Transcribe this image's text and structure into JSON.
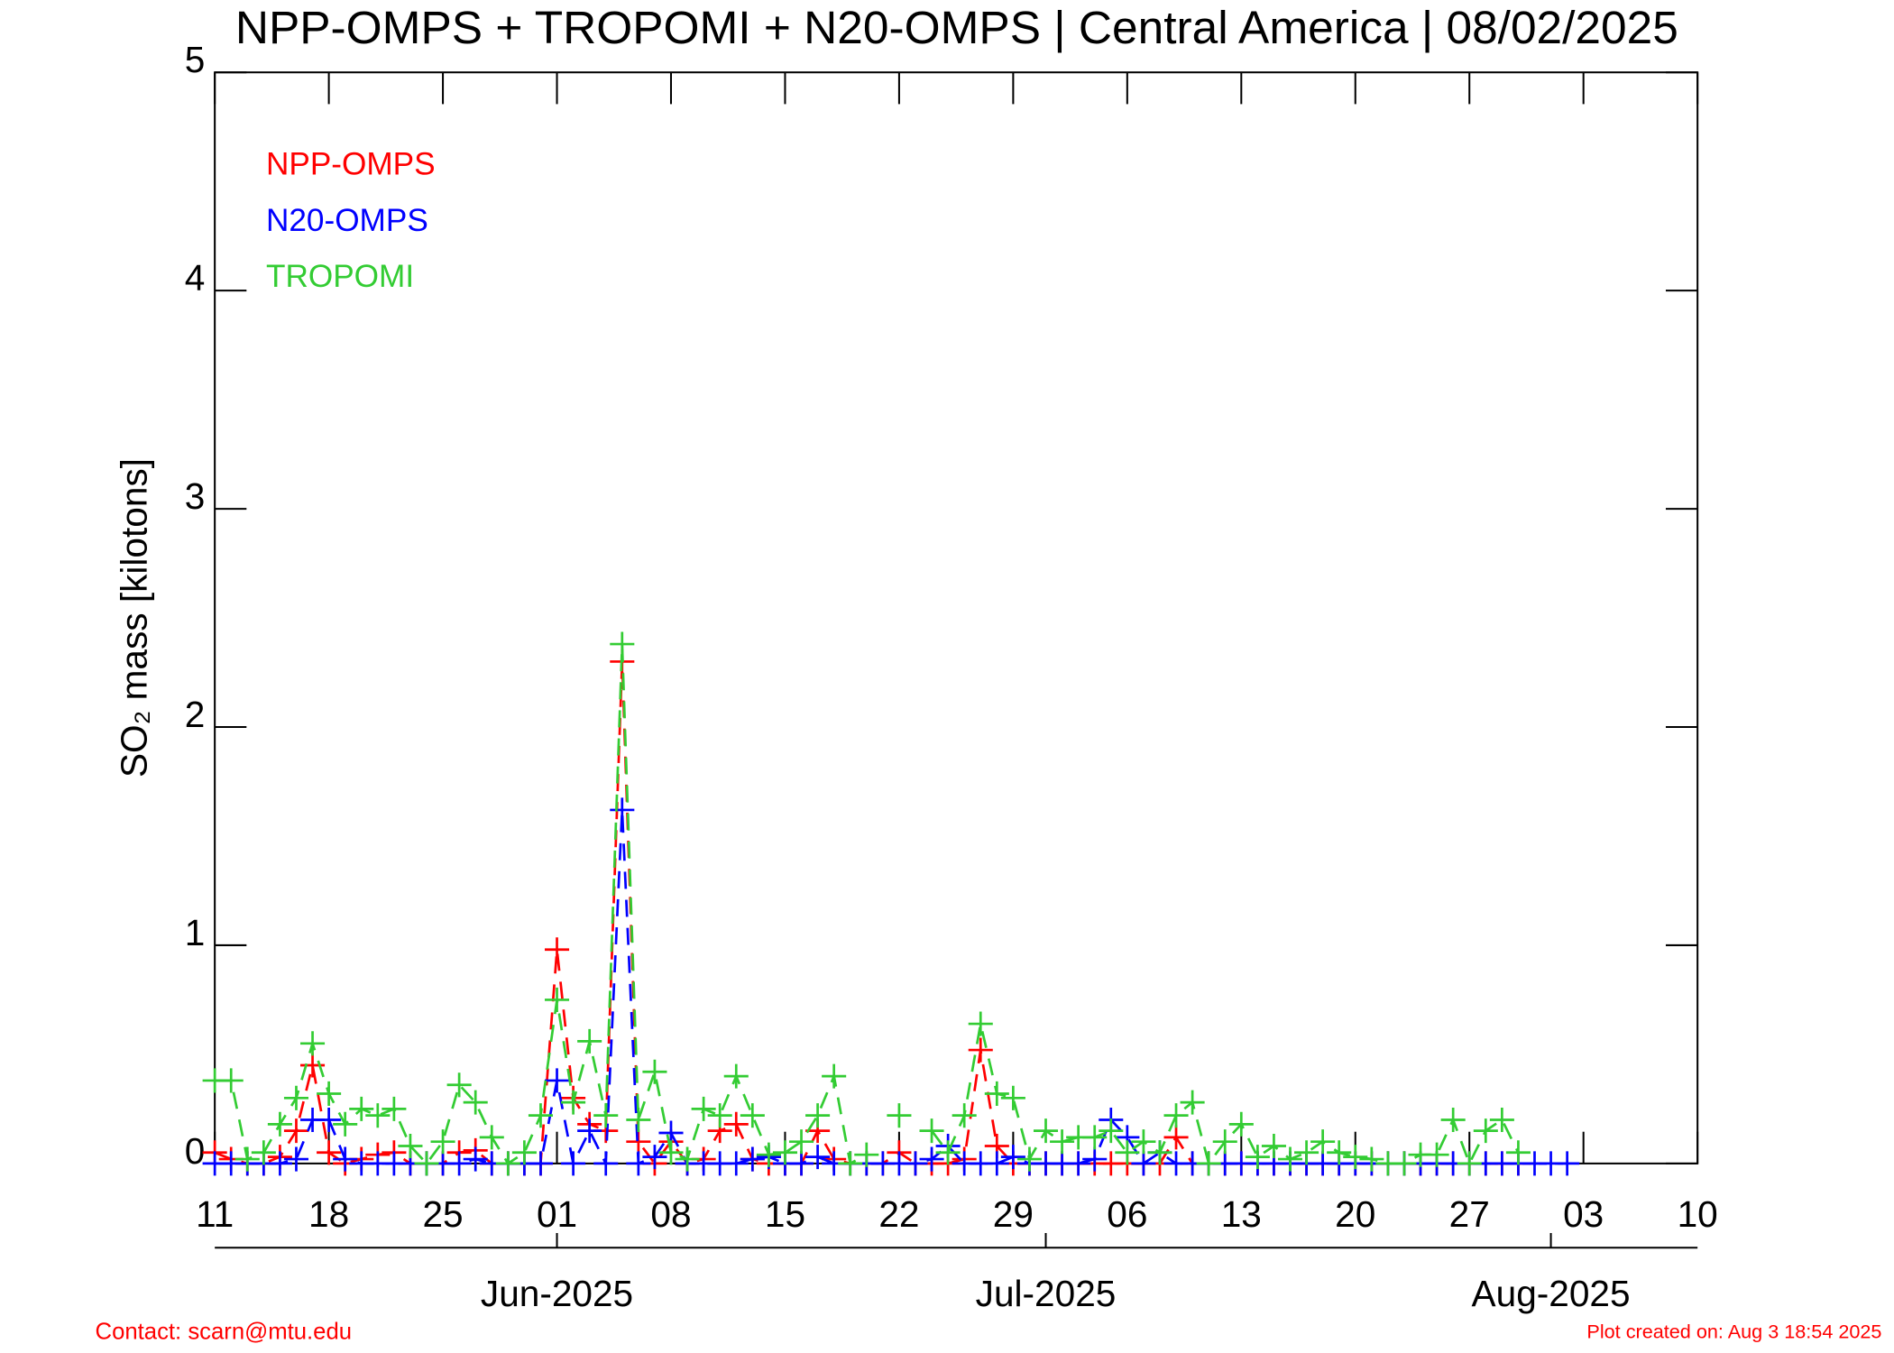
{
  "chart_data": {
    "type": "line",
    "title": "NPP-OMPS + TROPOMI + N20-OMPS | Central America | 08/02/2025",
    "y_label": "SO₂ mass [kilotons]",
    "contact": "Contact: scarn@mtu.edu",
    "created": "Plot created on: Aug  3 18:54 2025",
    "legend": "upper left",
    "x": [
      "2025-05-11",
      "2025-05-12",
      "2025-05-13",
      "2025-05-14",
      "2025-05-15",
      "2025-05-16",
      "2025-05-17",
      "2025-05-18",
      "2025-05-19",
      "2025-05-20",
      "2025-05-21",
      "2025-05-22",
      "2025-05-23",
      "2025-05-24",
      "2025-05-25",
      "2025-05-26",
      "2025-05-27",
      "2025-05-28",
      "2025-05-29",
      "2025-05-30",
      "2025-05-31",
      "2025-06-01",
      "2025-06-02",
      "2025-06-03",
      "2025-06-04",
      "2025-06-05",
      "2025-06-06",
      "2025-06-07",
      "2025-06-08",
      "2025-06-09",
      "2025-06-10",
      "2025-06-11",
      "2025-06-12",
      "2025-06-13",
      "2025-06-14",
      "2025-06-15",
      "2025-06-16",
      "2025-06-17",
      "2025-06-18",
      "2025-06-19",
      "2025-06-20",
      "2025-06-21",
      "2025-06-22",
      "2025-06-23",
      "2025-06-24",
      "2025-06-25",
      "2025-06-26",
      "2025-06-27",
      "2025-06-28",
      "2025-06-29",
      "2025-06-30",
      "2025-07-01",
      "2025-07-02",
      "2025-07-03",
      "2025-07-04",
      "2025-07-05",
      "2025-07-06",
      "2025-07-07",
      "2025-07-08",
      "2025-07-09",
      "2025-07-10",
      "2025-07-11",
      "2025-07-12",
      "2025-07-13",
      "2025-07-14",
      "2025-07-15",
      "2025-07-16",
      "2025-07-17",
      "2025-07-18",
      "2025-07-19",
      "2025-07-20",
      "2025-07-21",
      "2025-07-22",
      "2025-07-23",
      "2025-07-24",
      "2025-07-25",
      "2025-07-26",
      "2025-07-27",
      "2025-07-28",
      "2025-07-29",
      "2025-07-30",
      "2025-07-31",
      "2025-08-01",
      "2025-08-02"
    ],
    "series": [
      {
        "name": "NPP-OMPS",
        "color": "#ff0000",
        "values": [
          0.05,
          0.02,
          0,
          0,
          0.03,
          0.15,
          0.45,
          0.05,
          0,
          0.02,
          0.04,
          0.05,
          0,
          0,
          0,
          0.05,
          0.06,
          0,
          0,
          0,
          0,
          0.98,
          0.3,
          0.18,
          0.15,
          2.3,
          0.1,
          0,
          0.1,
          0,
          0.02,
          0.15,
          0.18,
          0.02,
          0,
          0,
          0,
          0.15,
          0.02,
          0,
          0,
          0,
          0.05,
          0,
          0,
          0,
          0.02,
          0.52,
          0.08,
          0,
          0,
          0,
          0,
          0,
          0,
          0,
          0,
          0,
          0,
          0.12,
          0,
          0,
          0,
          0,
          0,
          0,
          0,
          0,
          0,
          0,
          0,
          0,
          0,
          0,
          0,
          0,
          0,
          0,
          0,
          0,
          0,
          null,
          null,
          null
        ]
      },
      {
        "name": "N20-OMPS",
        "color": "#0000ff",
        "values": [
          0,
          0,
          0,
          0,
          0,
          0.02,
          0.2,
          0.2,
          0.02,
          0,
          0,
          0,
          0,
          0,
          0,
          0,
          0.02,
          0,
          0,
          0,
          0,
          0.38,
          0,
          0.15,
          0,
          1.62,
          0,
          0.03,
          0.14,
          0,
          0,
          0,
          0,
          0.02,
          0.03,
          0,
          0,
          0.03,
          0,
          0,
          0,
          0,
          0,
          0,
          0.02,
          0.08,
          0,
          0,
          0,
          0.03,
          0,
          0,
          0,
          0,
          0.02,
          0.2,
          0.12,
          0,
          0.05,
          0,
          0,
          0,
          0,
          0,
          0,
          0,
          0,
          0,
          0,
          0,
          0,
          0,
          0,
          0,
          0,
          0,
          0,
          0,
          0,
          0,
          0,
          0,
          0,
          0
        ]
      },
      {
        "name": "TROPOMI",
        "color": "#33cc33",
        "values": [
          0.38,
          0.38,
          0.02,
          0.05,
          0.18,
          0.3,
          0.55,
          0.32,
          0.18,
          0.25,
          0.22,
          0.25,
          0.08,
          0,
          0.1,
          0.36,
          0.28,
          0.12,
          0,
          0.05,
          0.22,
          0.75,
          0.28,
          0.56,
          0.22,
          2.38,
          0.2,
          0.42,
          0.05,
          0.02,
          0.25,
          0.22,
          0.4,
          0.22,
          0.04,
          0.05,
          0.1,
          0.22,
          0.4,
          0,
          0.04,
          null,
          0.22,
          null,
          0.15,
          0.05,
          0.22,
          0.64,
          0.32,
          0.3,
          0.02,
          0.15,
          0.1,
          0.12,
          0.12,
          0.15,
          0.05,
          0.1,
          0.05,
          0.22,
          0.28,
          0,
          0.1,
          0.18,
          0.03,
          0.08,
          0.02,
          0.05,
          0.1,
          0.05,
          0.03,
          0.02,
          0,
          0,
          0.04,
          0.04,
          0.2,
          0,
          0.15,
          0.2,
          0.05,
          null,
          null,
          null
        ]
      }
    ],
    "xlim": [
      "2025-05-11",
      "2025-08-10"
    ],
    "xticks": [
      {
        "value": "2025-05-11",
        "label": "11"
      },
      {
        "value": "2025-05-18",
        "label": "18"
      },
      {
        "value": "2025-05-25",
        "label": "25"
      },
      {
        "value": "2025-06-01",
        "label": "01"
      },
      {
        "value": "2025-06-08",
        "label": "08"
      },
      {
        "value": "2025-06-15",
        "label": "15"
      },
      {
        "value": "2025-06-22",
        "label": "22"
      },
      {
        "value": "2025-06-29",
        "label": "29"
      },
      {
        "value": "2025-07-06",
        "label": "06"
      },
      {
        "value": "2025-07-13",
        "label": "13"
      },
      {
        "value": "2025-07-20",
        "label": "20"
      },
      {
        "value": "2025-07-27",
        "label": "27"
      },
      {
        "value": "2025-08-03",
        "label": "03"
      },
      {
        "value": "2025-08-10",
        "label": "10"
      }
    ],
    "month_ticks": [
      {
        "value": "2025-06-01",
        "label": "Jun-2025"
      },
      {
        "value": "2025-07-01",
        "label": "Jul-2025"
      },
      {
        "value": "2025-08-01",
        "label": "Aug-2025"
      }
    ],
    "ylim": [
      0,
      5
    ],
    "yticks": [
      0,
      1,
      2,
      3,
      4,
      5
    ]
  }
}
